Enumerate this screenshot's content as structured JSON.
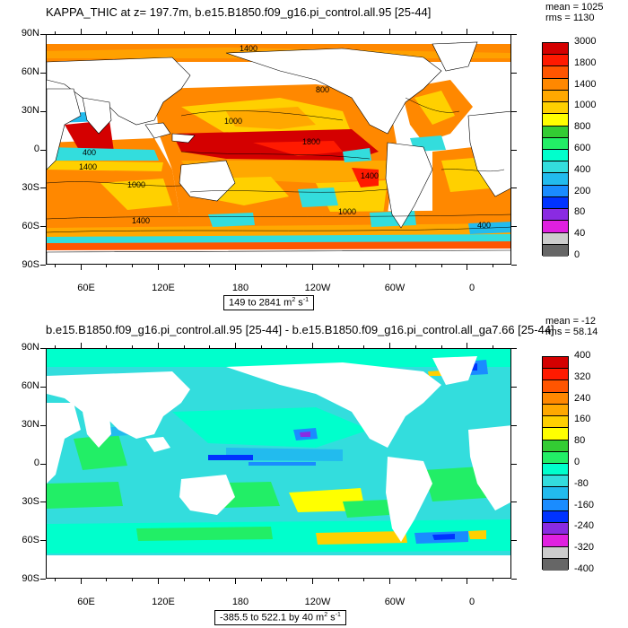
{
  "top": {
    "title": "KAPPA_THIC at z= 197.7m, b.e15.B1850.f09_g16.pi_control.all.95 [25-44]",
    "mean": "mean = 1025",
    "rms": "rms = 1130",
    "range_prefix": "149 to 2841 m",
    "range_sup": "2",
    "range_unit": " s",
    "range_sup2": "-1",
    "colorbar": {
      "labels": [
        "3000",
        "1800",
        "1400",
        "1000",
        "800",
        "600",
        "400",
        "200",
        "80",
        "40",
        "0"
      ],
      "colors": [
        "#d40000",
        "#ff1a00",
        "#ff5500",
        "#ff8800",
        "#ffa800",
        "#ffd000",
        "#ffff00",
        "#33cc33",
        "#22ee66",
        "#00ffcc",
        "#33dddd",
        "#22bbee",
        "#1a8cff",
        "#0033ff",
        "#8a2be2",
        "#e020e0",
        "#cccccc",
        "#666666"
      ]
    },
    "contour_labels": [
      "1400",
      "800",
      "1000",
      "1800",
      "400",
      "1400",
      "1000",
      "1400",
      "1000",
      "1400",
      "400"
    ]
  },
  "bottom": {
    "title": "b.e15.B1850.f09_g16.pi_control.all.95 [25-44] - b.e15.B1850.f09_g16.pi_control.all_ga7.66 [25-44]",
    "mean": "mean = -12",
    "rms": "rms = 58.14",
    "range_prefix": "-385.5 to 522.1 by 40 m",
    "range_sup": "2",
    "range_unit": " s",
    "range_sup2": "-1",
    "colorbar": {
      "labels": [
        "400",
        "320",
        "240",
        "160",
        "80",
        "0",
        "-80",
        "-160",
        "-240",
        "-320",
        "-400"
      ],
      "colors": [
        "#d40000",
        "#ff1a00",
        "#ff5500",
        "#ff8800",
        "#ffa800",
        "#ffd000",
        "#ffff00",
        "#33cc33",
        "#22ee66",
        "#00ffcc",
        "#33dddd",
        "#22bbee",
        "#1a8cff",
        "#0033ff",
        "#8a2be2",
        "#e020e0",
        "#cccccc",
        "#666666"
      ]
    }
  },
  "axes": {
    "lat_labels": [
      "90N",
      "60N",
      "30N",
      "0",
      "30S",
      "60S",
      "90S"
    ],
    "lon_labels": [
      "60E",
      "120E",
      "180",
      "120W",
      "60W",
      "0"
    ]
  }
}
